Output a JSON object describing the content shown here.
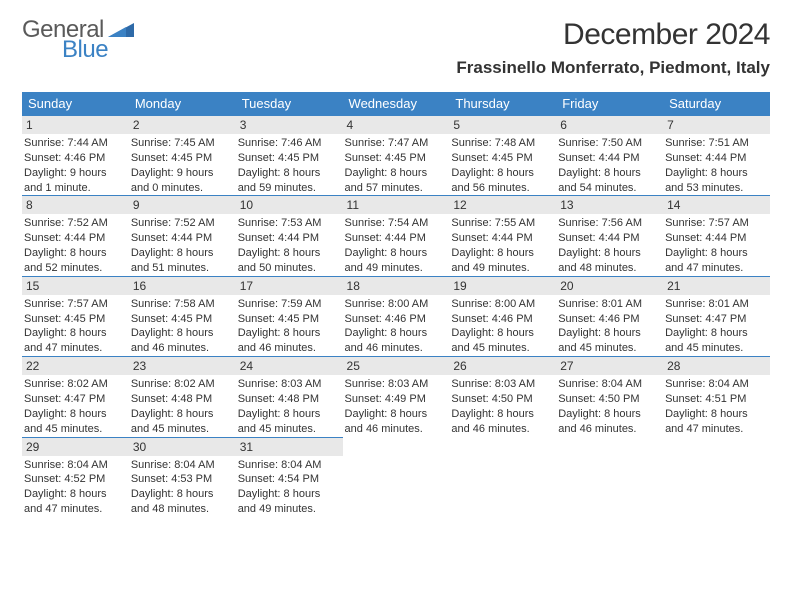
{
  "logo": {
    "word1": "General",
    "word2": "Blue"
  },
  "title": "December 2024",
  "location": "Frassinello Monferrato, Piedmont, Italy",
  "colors": {
    "header_bg": "#3b82c4",
    "header_fg": "#ffffff",
    "daynum_bg": "#e8e8e8",
    "rule": "#3b82c4",
    "text": "#333333",
    "logo_gray": "#5a5a5a",
    "logo_blue": "#3b82c4"
  },
  "weekdays": [
    "Sunday",
    "Monday",
    "Tuesday",
    "Wednesday",
    "Thursday",
    "Friday",
    "Saturday"
  ],
  "days": [
    {
      "n": 1,
      "sunrise": "7:44 AM",
      "sunset": "4:46 PM",
      "daylight": "9 hours and 1 minute."
    },
    {
      "n": 2,
      "sunrise": "7:45 AM",
      "sunset": "4:45 PM",
      "daylight": "9 hours and 0 minutes."
    },
    {
      "n": 3,
      "sunrise": "7:46 AM",
      "sunset": "4:45 PM",
      "daylight": "8 hours and 59 minutes."
    },
    {
      "n": 4,
      "sunrise": "7:47 AM",
      "sunset": "4:45 PM",
      "daylight": "8 hours and 57 minutes."
    },
    {
      "n": 5,
      "sunrise": "7:48 AM",
      "sunset": "4:45 PM",
      "daylight": "8 hours and 56 minutes."
    },
    {
      "n": 6,
      "sunrise": "7:50 AM",
      "sunset": "4:44 PM",
      "daylight": "8 hours and 54 minutes."
    },
    {
      "n": 7,
      "sunrise": "7:51 AM",
      "sunset": "4:44 PM",
      "daylight": "8 hours and 53 minutes."
    },
    {
      "n": 8,
      "sunrise": "7:52 AM",
      "sunset": "4:44 PM",
      "daylight": "8 hours and 52 minutes."
    },
    {
      "n": 9,
      "sunrise": "7:52 AM",
      "sunset": "4:44 PM",
      "daylight": "8 hours and 51 minutes."
    },
    {
      "n": 10,
      "sunrise": "7:53 AM",
      "sunset": "4:44 PM",
      "daylight": "8 hours and 50 minutes."
    },
    {
      "n": 11,
      "sunrise": "7:54 AM",
      "sunset": "4:44 PM",
      "daylight": "8 hours and 49 minutes."
    },
    {
      "n": 12,
      "sunrise": "7:55 AM",
      "sunset": "4:44 PM",
      "daylight": "8 hours and 49 minutes."
    },
    {
      "n": 13,
      "sunrise": "7:56 AM",
      "sunset": "4:44 PM",
      "daylight": "8 hours and 48 minutes."
    },
    {
      "n": 14,
      "sunrise": "7:57 AM",
      "sunset": "4:44 PM",
      "daylight": "8 hours and 47 minutes."
    },
    {
      "n": 15,
      "sunrise": "7:57 AM",
      "sunset": "4:45 PM",
      "daylight": "8 hours and 47 minutes."
    },
    {
      "n": 16,
      "sunrise": "7:58 AM",
      "sunset": "4:45 PM",
      "daylight": "8 hours and 46 minutes."
    },
    {
      "n": 17,
      "sunrise": "7:59 AM",
      "sunset": "4:45 PM",
      "daylight": "8 hours and 46 minutes."
    },
    {
      "n": 18,
      "sunrise": "8:00 AM",
      "sunset": "4:46 PM",
      "daylight": "8 hours and 46 minutes."
    },
    {
      "n": 19,
      "sunrise": "8:00 AM",
      "sunset": "4:46 PM",
      "daylight": "8 hours and 45 minutes."
    },
    {
      "n": 20,
      "sunrise": "8:01 AM",
      "sunset": "4:46 PM",
      "daylight": "8 hours and 45 minutes."
    },
    {
      "n": 21,
      "sunrise": "8:01 AM",
      "sunset": "4:47 PM",
      "daylight": "8 hours and 45 minutes."
    },
    {
      "n": 22,
      "sunrise": "8:02 AM",
      "sunset": "4:47 PM",
      "daylight": "8 hours and 45 minutes."
    },
    {
      "n": 23,
      "sunrise": "8:02 AM",
      "sunset": "4:48 PM",
      "daylight": "8 hours and 45 minutes."
    },
    {
      "n": 24,
      "sunrise": "8:03 AM",
      "sunset": "4:48 PM",
      "daylight": "8 hours and 45 minutes."
    },
    {
      "n": 25,
      "sunrise": "8:03 AM",
      "sunset": "4:49 PM",
      "daylight": "8 hours and 46 minutes."
    },
    {
      "n": 26,
      "sunrise": "8:03 AM",
      "sunset": "4:50 PM",
      "daylight": "8 hours and 46 minutes."
    },
    {
      "n": 27,
      "sunrise": "8:04 AM",
      "sunset": "4:50 PM",
      "daylight": "8 hours and 46 minutes."
    },
    {
      "n": 28,
      "sunrise": "8:04 AM",
      "sunset": "4:51 PM",
      "daylight": "8 hours and 47 minutes."
    },
    {
      "n": 29,
      "sunrise": "8:04 AM",
      "sunset": "4:52 PM",
      "daylight": "8 hours and 47 minutes."
    },
    {
      "n": 30,
      "sunrise": "8:04 AM",
      "sunset": "4:53 PM",
      "daylight": "8 hours and 48 minutes."
    },
    {
      "n": 31,
      "sunrise": "8:04 AM",
      "sunset": "4:54 PM",
      "daylight": "8 hours and 49 minutes."
    }
  ],
  "first_weekday_index": 0,
  "labels": {
    "sunrise": "Sunrise:",
    "sunset": "Sunset:",
    "daylight": "Daylight:"
  }
}
